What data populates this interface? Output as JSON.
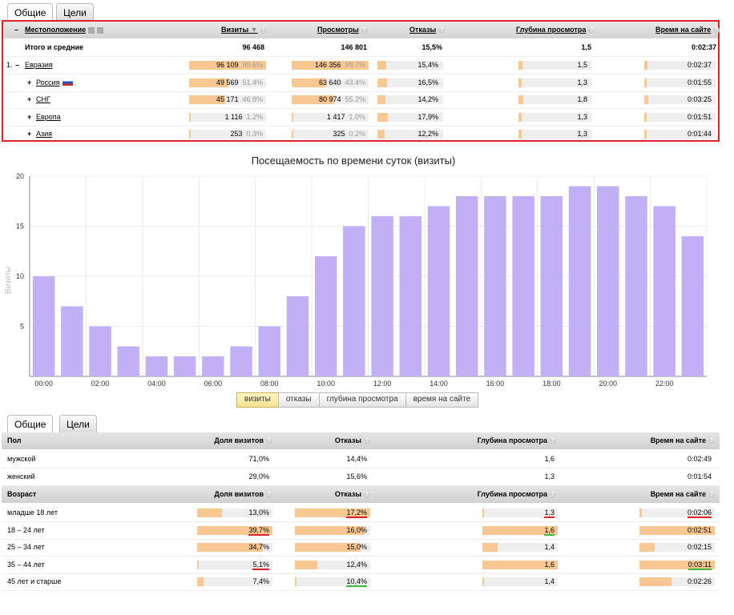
{
  "tabs_top": [
    "Общие",
    "Цели"
  ],
  "geo_table": {
    "headers": {
      "location": "Местоположение",
      "visits": "Визиты",
      "views": "Просмотры",
      "bounces": "Отказы",
      "depth": "Глубина просмотра",
      "time": "Время на сайте"
    },
    "sort_arrow": "▼",
    "help": "?",
    "collapse": "–",
    "expand": "+",
    "totals": {
      "label": "Итого и средние",
      "visits": "96 468",
      "views": "146 801",
      "bounces": "15,5%",
      "depth": "1,5",
      "time": "0:02:37"
    },
    "rows": [
      {
        "num": "1.",
        "name": "Евразия",
        "visits": "96 109",
        "visits_pct": "99.6%",
        "visits_frac": 0.996,
        "views": "146 356",
        "views_pct": "99.7%",
        "views_frac": 0.997,
        "bounces": "15,4%",
        "bounces_frac": 0.154,
        "depth": "1,5",
        "depth_frac": 0.05,
        "time": "0:02:37",
        "time_frac": 0.04
      },
      {
        "num": "",
        "name": "Россия",
        "visits": "49 569",
        "visits_pct": "51.4%",
        "visits_frac": 0.514,
        "views": "63 640",
        "views_pct": "43.4%",
        "views_frac": 0.434,
        "bounces": "16,5%",
        "bounces_frac": 0.165,
        "depth": "1,3",
        "depth_frac": 0.03,
        "time": "0:01:55",
        "time_frac": 0.03
      },
      {
        "num": "",
        "name": "СНГ",
        "visits": "45 171",
        "visits_pct": "46.8%",
        "visits_frac": 0.468,
        "views": "80 974",
        "views_pct": "55.2%",
        "views_frac": 0.552,
        "bounces": "14,2%",
        "bounces_frac": 0.142,
        "depth": "1,8",
        "depth_frac": 0.07,
        "time": "0:03:25",
        "time_frac": 0.06
      },
      {
        "num": "",
        "name": "Европа",
        "visits": "1 116",
        "visits_pct": "1.2%",
        "visits_frac": 0.012,
        "views": "1 417",
        "views_pct": "1.0%",
        "views_frac": 0.01,
        "bounces": "17,9%",
        "bounces_frac": 0.179,
        "depth": "1,3",
        "depth_frac": 0.03,
        "time": "0:01:51",
        "time_frac": 0.03
      },
      {
        "num": "",
        "name": "Азия",
        "visits": "253",
        "visits_pct": "0.3%",
        "visits_frac": 0.003,
        "views": "325",
        "views_pct": "0.2%",
        "views_frac": 0.002,
        "bounces": "12,2%",
        "bounces_frac": 0.122,
        "depth": "1,3",
        "depth_frac": 0.03,
        "time": "0:01:44",
        "time_frac": 0.03
      }
    ]
  },
  "chart_data": {
    "type": "bar",
    "title": "Посещаемость по времени суток (визиты)",
    "ylabel": "Визиты",
    "xlabel": "",
    "ylim": [
      0,
      20
    ],
    "yticks": [
      0,
      5,
      10,
      15,
      20
    ],
    "ytick_labels": [
      "5",
      "10",
      "15",
      "20"
    ],
    "categories": [
      "00",
      "01",
      "02",
      "03",
      "04",
      "05",
      "06",
      "07",
      "08",
      "09",
      "10",
      "11",
      "12",
      "13",
      "14",
      "15",
      "16",
      "17",
      "18",
      "19",
      "20",
      "21",
      "22",
      "23"
    ],
    "xtick_labels": [
      "00:00",
      "02:00",
      "04:00",
      "06:00",
      "08:00",
      "10:00",
      "12:00",
      "14:00",
      "16:00",
      "18:00",
      "20:00",
      "22:00"
    ],
    "values": [
      10,
      7,
      5,
      3,
      2,
      2,
      2,
      3,
      5,
      8,
      12,
      15,
      16,
      16,
      17,
      18,
      18,
      18,
      18,
      19,
      19,
      18,
      17,
      14
    ],
    "color": "#c2b0f7"
  },
  "metric_buttons": [
    "визиты",
    "отказы",
    "глубина просмотра",
    "время на сайте"
  ],
  "tabs_bottom": [
    "Общие",
    "Цели"
  ],
  "gender_table": {
    "headers": {
      "label": "Пол",
      "share": "Доля визитов",
      "bounces": "Отказы",
      "depth": "Глубина просмотра",
      "time": "Время на сайте"
    },
    "rows": [
      {
        "label": "мужской",
        "share": "71,0%",
        "bounces": "14,4%",
        "depth": "1,6",
        "time": "0:02:49"
      },
      {
        "label": "женский",
        "share": "29,0%",
        "bounces": "15,6%",
        "depth": "1,3",
        "time": "0:01:54"
      }
    ]
  },
  "age_table": {
    "headers": {
      "label": "Возраст",
      "share": "Доля визитов",
      "bounces": "Отказы",
      "depth": "Глубина просмотра",
      "time": "Время на сайте"
    },
    "rows": [
      {
        "label": "младше 18 лет",
        "share": "13,0%",
        "share_frac": 0.33,
        "share_ul": "",
        "bounces": "17,2%",
        "bounces_frac": 1.0,
        "bounces_ul": "red",
        "depth": "1,3",
        "depth_frac": 0.0,
        "depth_ul": "red",
        "time": "0:02:06",
        "time_frac": 0.03,
        "time_ul": "red"
      },
      {
        "label": "18 – 24 лет",
        "share": "39,7%",
        "share_frac": 1.0,
        "share_ul": "red",
        "bounces": "16,0%",
        "bounces_frac": 0.93,
        "bounces_ul": "",
        "depth": "1,6",
        "depth_frac": 1.0,
        "depth_ul": "green",
        "time": "0:02:51",
        "time_frac": 1.0,
        "time_ul": ""
      },
      {
        "label": "25 – 34 лет",
        "share": "34,7%",
        "share_frac": 0.87,
        "share_ul": "",
        "bounces": "15,0%",
        "bounces_frac": 0.87,
        "bounces_ul": "",
        "depth": "1,4",
        "depth_frac": 0.2,
        "depth_ul": "",
        "time": "0:02:15",
        "time_frac": 0.2,
        "time_ul": ""
      },
      {
        "label": "35 – 44 лет",
        "share": "5,1%",
        "share_frac": 0.0,
        "share_ul": "red",
        "bounces": "12,4%",
        "bounces_frac": 0.3,
        "bounces_ul": "",
        "depth": "1,6",
        "depth_frac": 1.0,
        "depth_ul": "",
        "time": "0:03:11",
        "time_frac": 1.0,
        "time_ul": "green"
      },
      {
        "label": "45 лет и старше",
        "share": "7,4%",
        "share_frac": 0.08,
        "share_ul": "",
        "bounces": "10,4%",
        "bounces_frac": 0.0,
        "bounces_ul": "green",
        "depth": "1,4",
        "depth_frac": 0.0,
        "depth_ul": "",
        "time": "0:02:26",
        "time_frac": 0.43,
        "time_ul": ""
      }
    ]
  }
}
